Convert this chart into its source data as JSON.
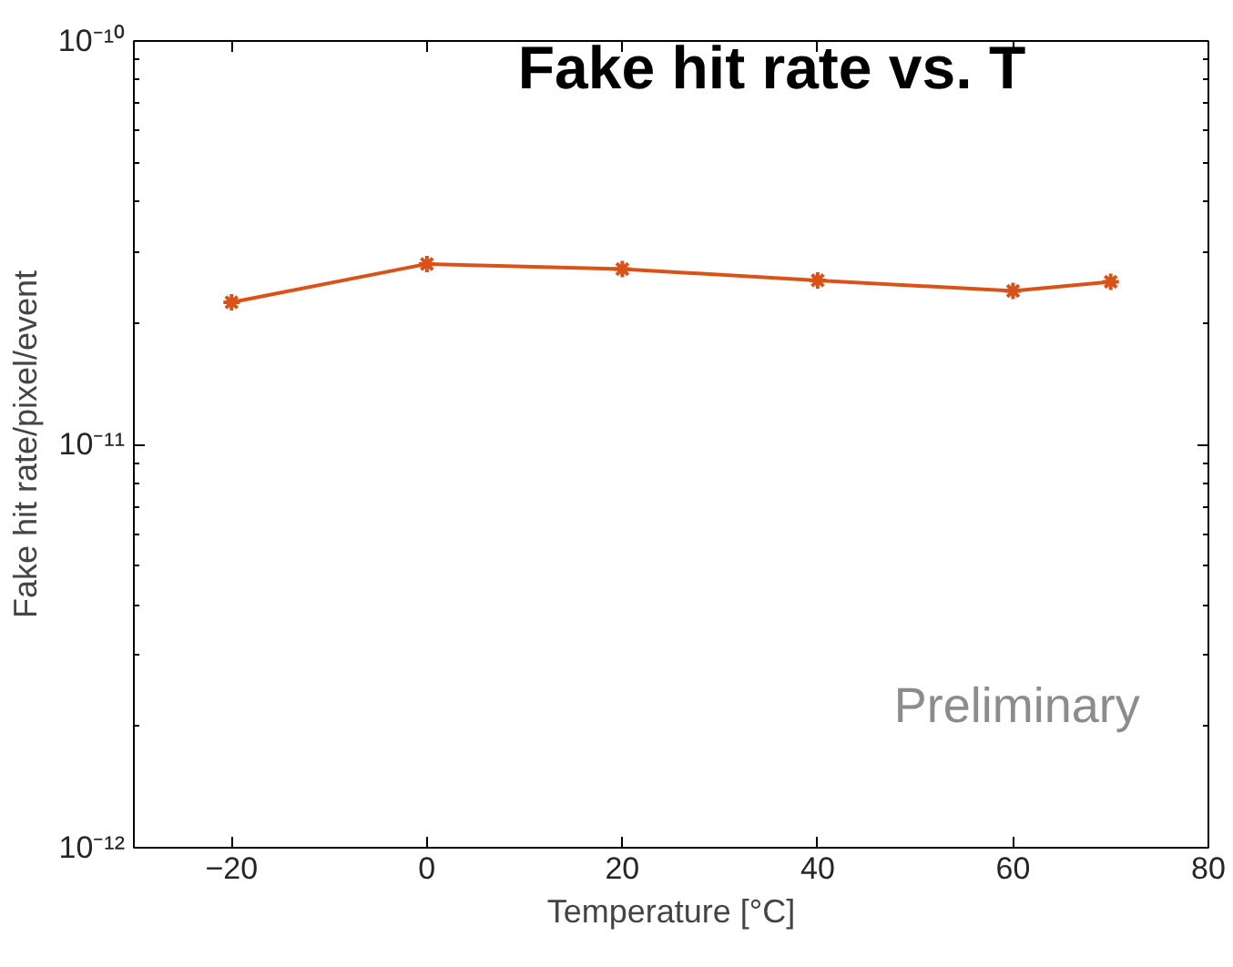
{
  "chart_data": {
    "type": "line",
    "title": "Fake hit rate vs. T",
    "xlabel": "Temperature [°C]",
    "ylabel": "Fake hit rate/pixel/event",
    "x": [
      -20,
      0,
      20,
      40,
      60,
      70
    ],
    "series": [
      {
        "color": "#d95319",
        "values": [
          2.25e-11,
          2.8e-11,
          2.72e-11,
          2.55e-11,
          2.4e-11,
          2.53e-11
        ]
      }
    ],
    "log": true,
    "xlim": [
      -30,
      80
    ],
    "xticks": [
      -20,
      0,
      20,
      40,
      60,
      80
    ],
    "ylim": [
      1e-12,
      1e-10
    ],
    "yticks": [
      {
        "value": 1e-12,
        "label": "10⁻¹²"
      },
      {
        "value": 1e-11,
        "label": "10⁻¹¹"
      },
      {
        "value": 1e-10,
        "label": "10⁻¹⁰"
      }
    ],
    "marker": "cross",
    "line_style": "solid",
    "grid": false,
    "annotations": [
      "Preliminary"
    ]
  }
}
